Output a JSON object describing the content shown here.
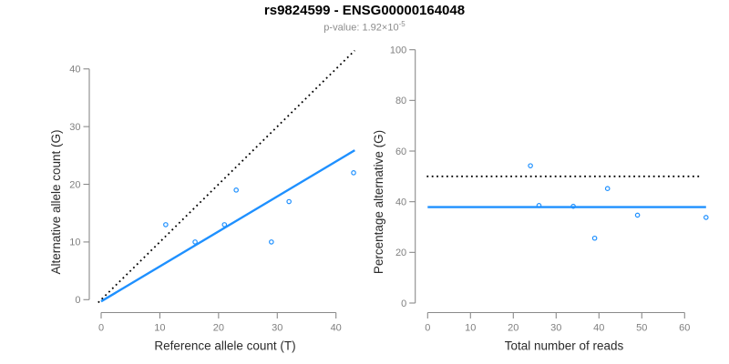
{
  "header": {
    "title": "rs9824599 - ENSG00000164048",
    "subtitle_prefix": "p-value: 1.92×10",
    "subtitle_exponent": "-5"
  },
  "colors": {
    "points": "#1E90FF",
    "fit_line": "#1E90FF",
    "reference_line": "#000000",
    "axis": "#8A8A8A",
    "tick_text": "#808080",
    "axis_title": "#2B2B2B",
    "title": "#000000",
    "subtitle": "#8C8C8C",
    "background": "#FFFFFF"
  },
  "chart_data": [
    {
      "type": "scatter",
      "name": "allele-counts",
      "xlabel": "Reference allele count (T)",
      "ylabel": "Alternative allele count (G)",
      "x_ticks": [
        0,
        10,
        20,
        30,
        40
      ],
      "y_ticks": [
        0,
        10,
        20,
        30,
        40
      ],
      "xlim": [
        0,
        43.2
      ],
      "ylim": [
        0,
        43.5
      ],
      "grid": false,
      "legend": "none",
      "points": [
        [
          11,
          13
        ],
        [
          16,
          10
        ],
        [
          21,
          13
        ],
        [
          23,
          19
        ],
        [
          29,
          10
        ],
        [
          32,
          17
        ],
        [
          43,
          22
        ]
      ],
      "lines": [
        {
          "name": "identity-line",
          "style": "dotted",
          "color": "#000000",
          "from": [
            -0.5,
            -0.5
          ],
          "to": [
            43.2,
            43.2
          ]
        },
        {
          "name": "fit-line",
          "style": "solid",
          "color": "#1E90FF",
          "from": [
            0,
            -0.3
          ],
          "to": [
            43.2,
            25.9
          ]
        }
      ]
    },
    {
      "type": "scatter",
      "name": "percentage-vs-reads",
      "xlabel": "Total number of reads",
      "ylabel": "Percentage alternative (G)",
      "x_ticks": [
        0,
        10,
        20,
        30,
        40,
        50,
        60
      ],
      "y_ticks": [
        0,
        20,
        40,
        60,
        80,
        100
      ],
      "xlim": [
        0,
        65
      ],
      "ylim": [
        0,
        100
      ],
      "grid": false,
      "legend": "none",
      "points": [
        [
          24,
          54.2
        ],
        [
          26,
          38.5
        ],
        [
          34,
          38.2
        ],
        [
          42,
          45.2
        ],
        [
          39,
          25.6
        ],
        [
          49,
          34.7
        ],
        [
          65,
          33.8
        ]
      ],
      "lines": [
        {
          "name": "fifty-percent-line",
          "style": "dotted",
          "color": "#000000",
          "from": [
            -0.2,
            50
          ],
          "to": [
            63.5,
            50
          ]
        },
        {
          "name": "mean-percentage-line",
          "style": "solid",
          "color": "#1E90FF",
          "from": [
            0,
            37.9
          ],
          "to": [
            65,
            37.9
          ]
        }
      ]
    }
  ]
}
